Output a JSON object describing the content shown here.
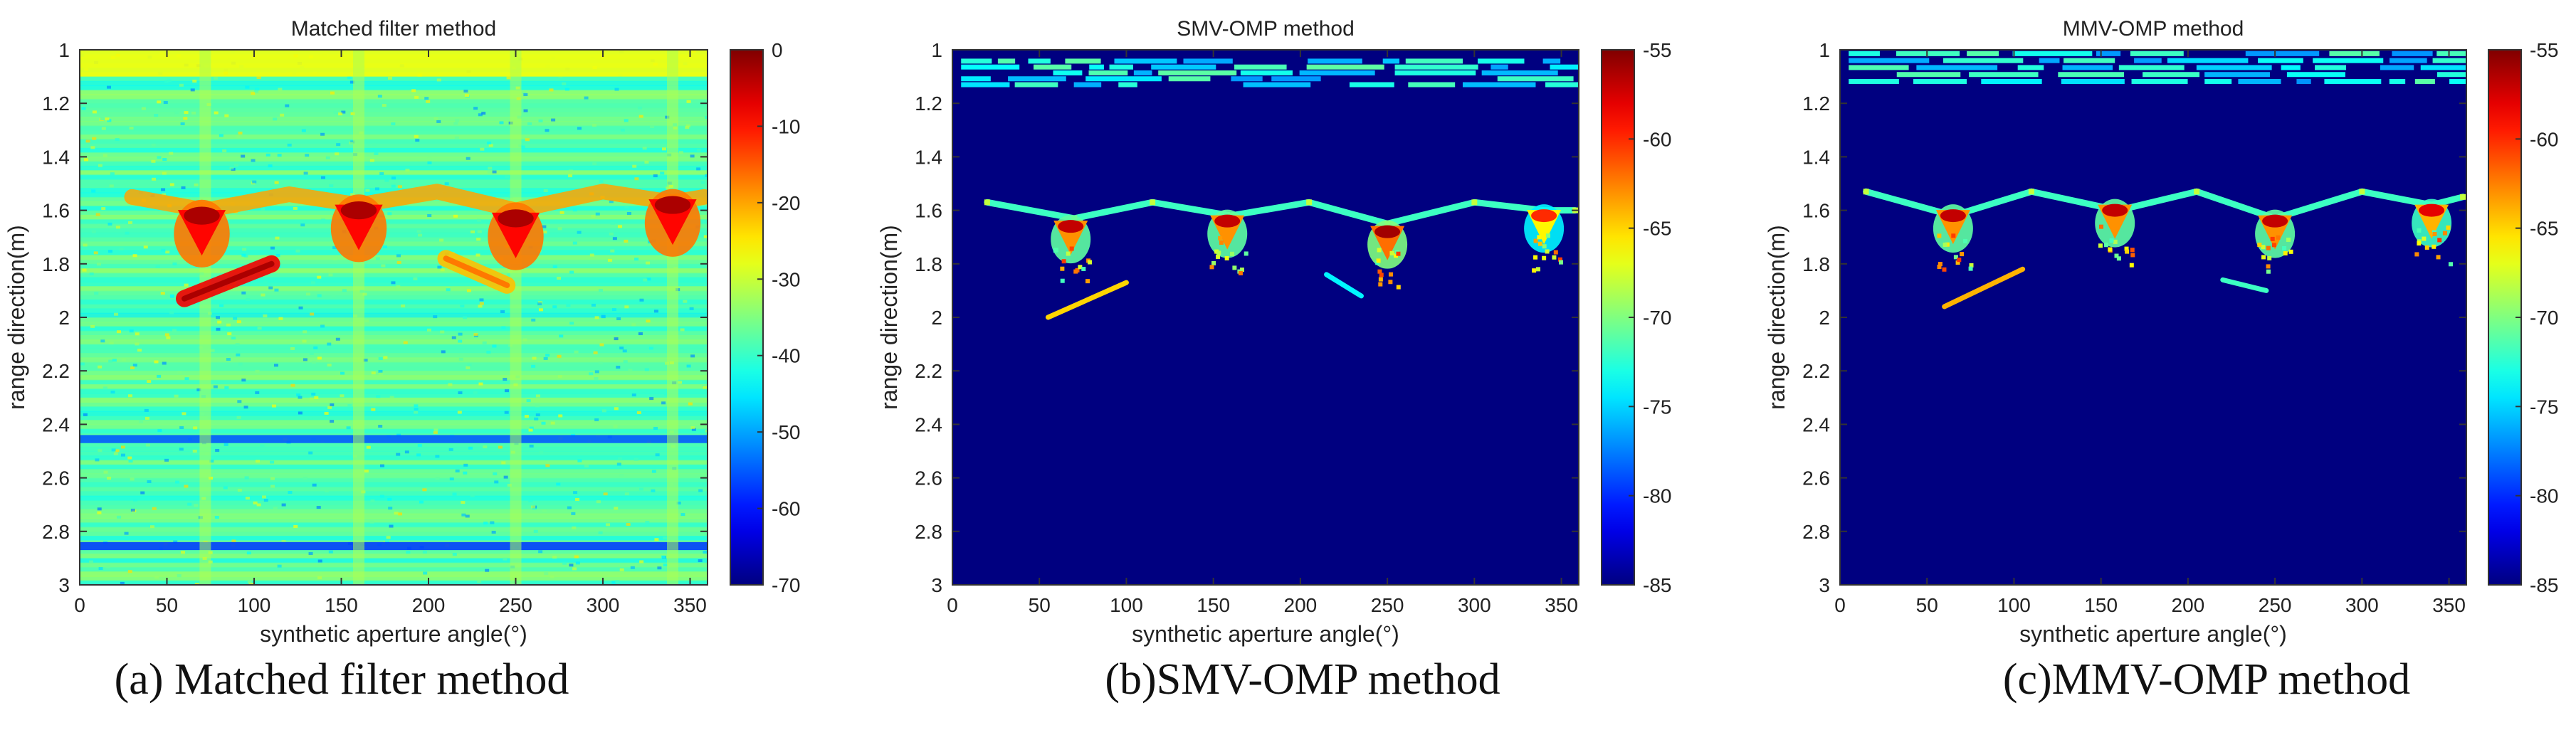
{
  "captions": [
    "(a) Matched filter method",
    "(b)SMV-OMP method",
    "(c)MMV-OMP method"
  ],
  "chart_data": [
    {
      "type": "heatmap",
      "title": "Matched filter method",
      "xlabel": "synthetic aperture angle(°)",
      "ylabel": "range direction(m)",
      "xlim": [
        0,
        360
      ],
      "ylim": [
        1,
        3
      ],
      "y_reversed": true,
      "xticks": [
        0,
        50,
        100,
        150,
        200,
        250,
        300,
        350
      ],
      "yticks": [
        1,
        1.2,
        1.4,
        1.6,
        1.8,
        2,
        2.2,
        2.4,
        2.6,
        2.8,
        3
      ],
      "colorbar": {
        "colormap": "jet",
        "range": [
          -70,
          0
        ],
        "ticks": [
          0,
          -10,
          -20,
          -30,
          -40,
          -50,
          -60,
          -70
        ]
      },
      "background_level": -38,
      "features": [
        {
          "kind": "band",
          "y": [
            1.0,
            1.1
          ],
          "level": -27
        },
        {
          "kind": "band",
          "y": [
            2.44,
            2.47
          ],
          "level": -55
        },
        {
          "kind": "band",
          "y": [
            2.84,
            2.87
          ],
          "level": -57
        },
        {
          "kind": "vertical_stripe",
          "x": 72,
          "level": -32
        },
        {
          "kind": "vertical_stripe",
          "x": 160,
          "level": -32
        },
        {
          "kind": "vertical_stripe",
          "x": 250,
          "level": -32
        },
        {
          "kind": "vertical_stripe",
          "x": 340,
          "level": -32
        },
        {
          "kind": "arc",
          "points": [
            [
              30,
              1.55
            ],
            [
              72,
              1.6
            ],
            [
              120,
              1.54
            ],
            [
              160,
              1.58
            ],
            [
              205,
              1.53
            ],
            [
              250,
              1.6
            ],
            [
              300,
              1.53
            ],
            [
              340,
              1.57
            ],
            [
              358,
              1.55
            ]
          ],
          "level": -20
        },
        {
          "kind": "peak",
          "x": 70,
          "y": 1.62,
          "level": -3
        },
        {
          "kind": "peak",
          "x": 160,
          "y": 1.6,
          "level": -3
        },
        {
          "kind": "peak",
          "x": 250,
          "y": 1.63,
          "level": -3
        },
        {
          "kind": "peak",
          "x": 340,
          "y": 1.58,
          "level": -3
        },
        {
          "kind": "segment",
          "from": [
            60,
            1.93
          ],
          "to": [
            110,
            1.8
          ],
          "level": -8
        },
        {
          "kind": "segment",
          "from": [
            210,
            1.78
          ],
          "to": [
            245,
            1.88
          ],
          "level": -22
        }
      ]
    },
    {
      "type": "heatmap",
      "title": "SMV-OMP method",
      "xlabel": "synthetic aperture angle(°)",
      "ylabel": "range direction(m)",
      "xlim": [
        0,
        360
      ],
      "ylim": [
        1,
        3
      ],
      "y_reversed": true,
      "xticks": [
        0,
        50,
        100,
        150,
        200,
        250,
        300,
        350
      ],
      "yticks": [
        1,
        1.2,
        1.4,
        1.6,
        1.8,
        2,
        2.2,
        2.4,
        2.6,
        2.8,
        3
      ],
      "colorbar": {
        "colormap": "jet",
        "range": [
          -85,
          -55
        ],
        "ticks": [
          -55,
          -60,
          -65,
          -70,
          -75,
          -80,
          -85
        ]
      },
      "background_level": -85,
      "features": [
        {
          "kind": "band",
          "y": [
            1.03,
            1.14
          ],
          "level": -74
        },
        {
          "kind": "arc",
          "points": [
            [
              20,
              1.57
            ],
            [
              70,
              1.63
            ],
            [
              115,
              1.57
            ],
            [
              160,
              1.62
            ],
            [
              205,
              1.57
            ],
            [
              250,
              1.65
            ],
            [
              300,
              1.57
            ],
            [
              340,
              1.6
            ],
            [
              358,
              1.6
            ]
          ],
          "level": -72
        },
        {
          "kind": "peak",
          "x": 68,
          "y": 1.66,
          "level": -57
        },
        {
          "kind": "peak",
          "x": 158,
          "y": 1.64,
          "level": -57
        },
        {
          "kind": "peak",
          "x": 250,
          "y": 1.68,
          "level": -56
        },
        {
          "kind": "peak",
          "x": 340,
          "y": 1.62,
          "level": -60
        },
        {
          "kind": "segment",
          "from": [
            55,
            2.0
          ],
          "to": [
            100,
            1.87
          ],
          "level": -65
        },
        {
          "kind": "segment",
          "from": [
            215,
            1.84
          ],
          "to": [
            235,
            1.92
          ],
          "level": -74
        }
      ]
    },
    {
      "type": "heatmap",
      "title": "MMV-OMP method",
      "xlabel": "synthetic aperture angle(°)",
      "ylabel": "range direction(m)",
      "xlim": [
        0,
        360
      ],
      "ylim": [
        1,
        3
      ],
      "y_reversed": true,
      "xticks": [
        0,
        50,
        100,
        150,
        200,
        250,
        300,
        350
      ],
      "yticks": [
        1,
        1.2,
        1.4,
        1.6,
        1.8,
        2,
        2.2,
        2.4,
        2.6,
        2.8,
        3
      ],
      "colorbar": {
        "colormap": "jet",
        "range": [
          -85,
          -55
        ],
        "ticks": [
          -55,
          -60,
          -65,
          -70,
          -75,
          -80,
          -85
        ]
      },
      "background_level": -85,
      "features": [
        {
          "kind": "band",
          "y": [
            1.0,
            1.13
          ],
          "level": -74
        },
        {
          "kind": "arc",
          "points": [
            [
              15,
              1.53
            ],
            [
              65,
              1.62
            ],
            [
              110,
              1.53
            ],
            [
              160,
              1.6
            ],
            [
              205,
              1.53
            ],
            [
              250,
              1.63
            ],
            [
              300,
              1.53
            ],
            [
              340,
              1.58
            ],
            [
              358,
              1.55
            ]
          ],
          "level": -72
        },
        {
          "kind": "peak",
          "x": 65,
          "y": 1.62,
          "level": -57
        },
        {
          "kind": "peak",
          "x": 158,
          "y": 1.6,
          "level": -57
        },
        {
          "kind": "peak",
          "x": 250,
          "y": 1.64,
          "level": -57
        },
        {
          "kind": "peak",
          "x": 340,
          "y": 1.6,
          "level": -58
        },
        {
          "kind": "segment",
          "from": [
            60,
            1.96
          ],
          "to": [
            105,
            1.82
          ],
          "level": -64
        },
        {
          "kind": "segment",
          "from": [
            220,
            1.86
          ],
          "to": [
            245,
            1.9
          ],
          "level": -72
        }
      ]
    }
  ]
}
